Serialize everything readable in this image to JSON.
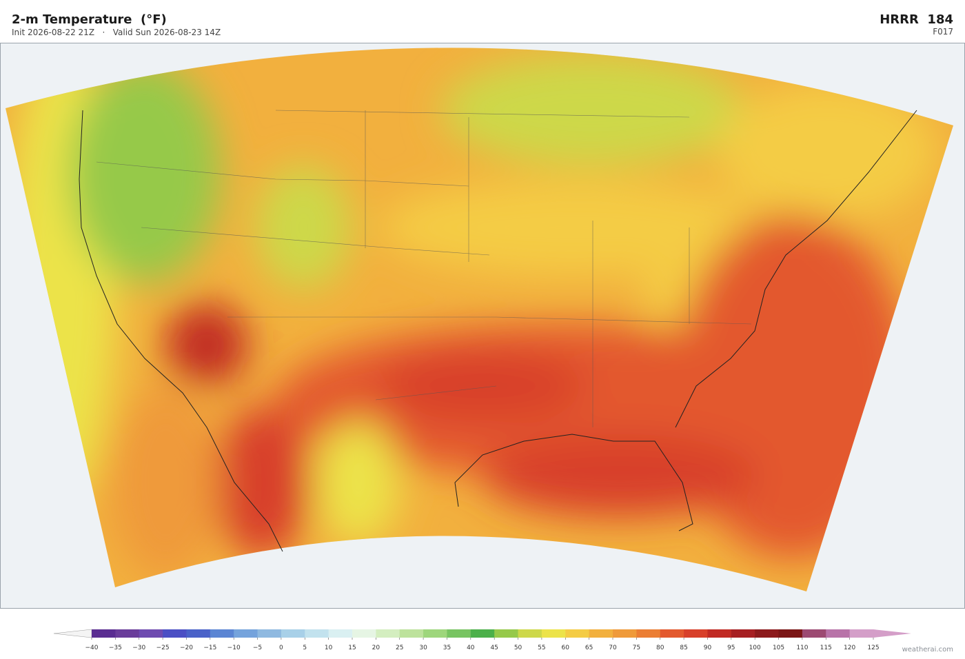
{
  "header": {
    "title": "2-m Temperature  (°F)",
    "subtitle": "Init 2026-08-22 21Z   ·   Valid Sun 2026-08-23 14Z",
    "model": "HRRR  184",
    "forecast_hour": "F017"
  },
  "colorbar": {
    "ticks": [
      {
        "value": -40,
        "label": "−40"
      },
      {
        "value": -35,
        "label": "−35"
      },
      {
        "value": -30,
        "label": "−30"
      },
      {
        "value": -25,
        "label": "−25"
      },
      {
        "value": -20,
        "label": "−20"
      },
      {
        "value": -15,
        "label": "−15"
      },
      {
        "value": -10,
        "label": "−10"
      },
      {
        "value": -5,
        "label": "−5"
      },
      0,
      5,
      10,
      15,
      20,
      25,
      30,
      35,
      40,
      45,
      50,
      55,
      60,
      65,
      70,
      75,
      80,
      85,
      90,
      95,
      100,
      105,
      110,
      115,
      120,
      125
    ],
    "colors": [
      "#5a2d91",
      "#6a3d9a",
      "#6e4bb0",
      "#4b4fc4",
      "#4a62c8",
      "#5b85d3",
      "#75a3dc",
      "#8fb9e0",
      "#a8d0e8",
      "#c2e2ee",
      "#daf0f2",
      "#e6f5e4",
      "#d4eec0",
      "#bde29c",
      "#9ed67c",
      "#78c462",
      "#4cb04a",
      "#96c94a",
      "#cdd84a",
      "#ece34a",
      "#f4cc45",
      "#f2b03e",
      "#ef9a3a",
      "#eb7e34",
      "#e3592e",
      "#d8402a",
      "#c12a24",
      "#a61f22",
      "#8c1a1c",
      "#7b1616",
      "#9c4a72",
      "#b873a8",
      "#d49ec8"
    ],
    "under_color": "#f4f4f4",
    "over_color": "#d49ec8"
  },
  "footer": {
    "credit": "weatherai.com"
  }
}
